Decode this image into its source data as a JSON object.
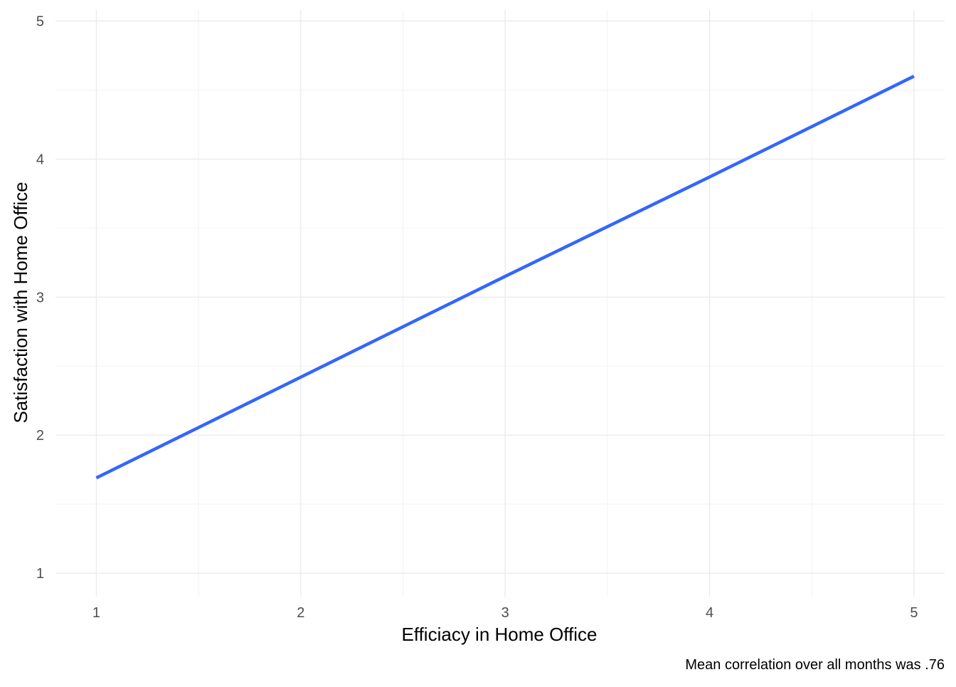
{
  "chart_data": {
    "type": "line",
    "title": "",
    "xlabel": "Efficiacy in Home Office",
    "ylabel": "Satisfaction with Home Office",
    "caption": "Mean correlation over all months was .76",
    "xlim": [
      0.8,
      5.15
    ],
    "ylim": [
      0.83,
      5.08
    ],
    "x_ticks": [
      1,
      2,
      3,
      4,
      5
    ],
    "y_ticks": [
      1,
      2,
      3,
      4,
      5
    ],
    "x_minor": [
      1.5,
      2.5,
      3.5,
      4.5
    ],
    "y_minor": [
      1.5,
      2.5,
      3.5,
      4.5
    ],
    "grid": true,
    "legend": "none",
    "colors": {
      "line": "#3366ff",
      "grid_major": "#ebebeb",
      "grid_minor": "#f2f2f2",
      "tick_text": "#4d4d4d"
    },
    "series": [
      {
        "x": [
          1,
          2,
          3,
          4,
          5
        ],
        "y": [
          1.69,
          2.42,
          3.15,
          3.87,
          4.6
        ]
      }
    ]
  }
}
